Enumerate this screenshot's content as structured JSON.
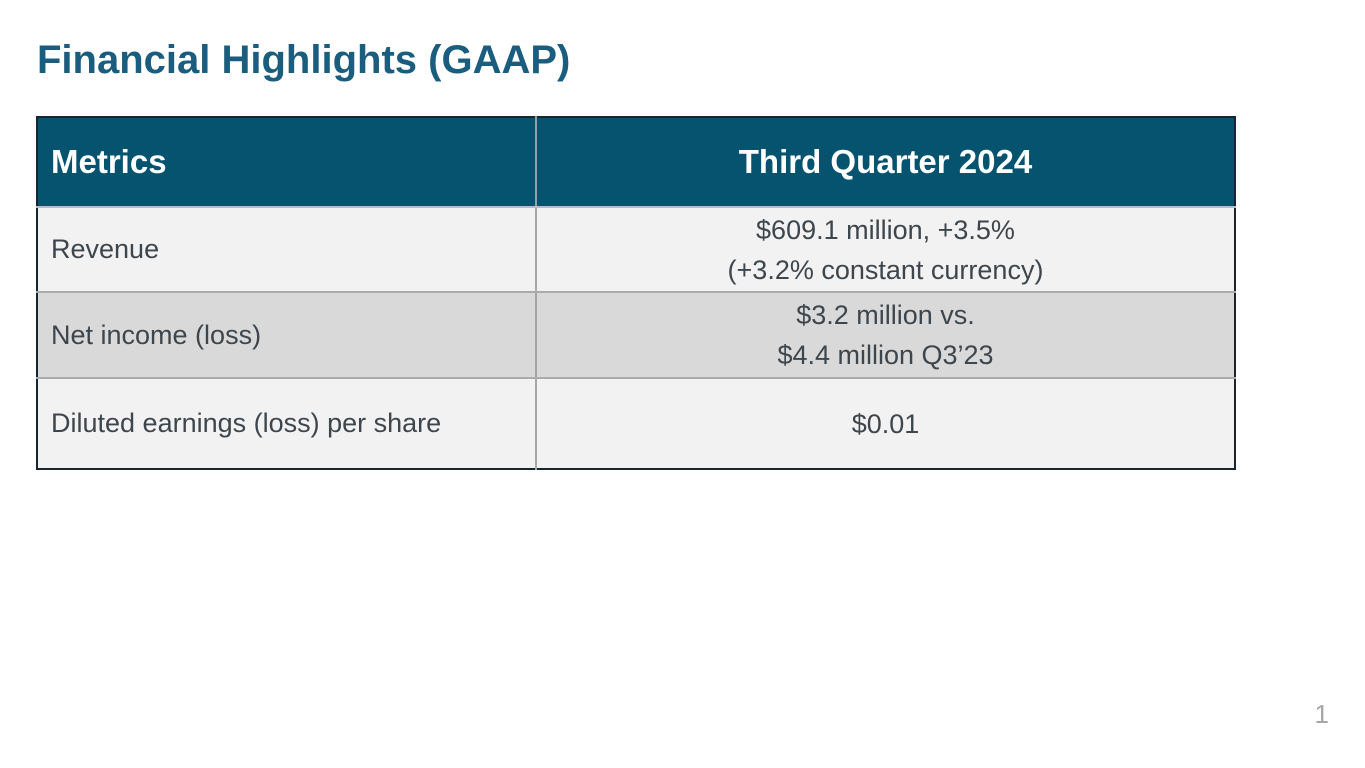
{
  "slide": {
    "title": "Financial Highlights (GAAP)",
    "page_number": "1"
  },
  "table": {
    "columns": [
      "Metrics",
      "Third Quarter 2024"
    ],
    "rows": [
      {
        "metric": "Revenue",
        "value_lines": [
          "$609.1 million, +3.5%",
          "(+3.2% constant currency)"
        ]
      },
      {
        "metric": "Net income (loss)",
        "value_lines": [
          "$3.2 million vs.",
          "$4.4 million Q3’23"
        ]
      },
      {
        "metric": "Diluted earnings (loss) per share",
        "value_lines": [
          "$0.01"
        ]
      }
    ]
  },
  "colors": {
    "title_text": "#1a5d7e",
    "header_bg": "#06536f",
    "header_text": "#ffffff",
    "body_text": "#3e464d",
    "row_light_bg": "#f2f2f2",
    "row_mid_bg": "#d9d9d9",
    "outer_border": "#182430",
    "page_number_text": "#a6a6a6"
  }
}
